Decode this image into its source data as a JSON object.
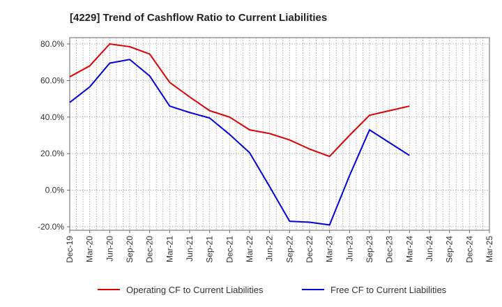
{
  "chart_data": {
    "type": "line",
    "title": "[4229]  Trend of Cashflow Ratio to Current Liabilities",
    "xlabel": "",
    "ylabel": "",
    "ylim": [
      -20,
      80
    ],
    "y_ticks": [
      "80.0%",
      "60.0%",
      "40.0%",
      "20.0%",
      "0.0%",
      "-20.0%"
    ],
    "y_tick_values": [
      80,
      60,
      40,
      20,
      0,
      -20
    ],
    "x_tick_labels": [
      "Dec-19",
      "Mar-20",
      "Jun-20",
      "Sep-20",
      "Dec-20",
      "Mar-21",
      "Jun-21",
      "Sep-21",
      "Dec-21",
      "Mar-22",
      "Jun-22",
      "Sep-22",
      "Dec-22",
      "Mar-23",
      "Jun-23",
      "Sep-23",
      "Dec-23",
      "Mar-24",
      "Jun-24",
      "Sep-24",
      "Dec-24",
      "Mar-25"
    ],
    "grid": true,
    "legend_position": "bottom",
    "series": [
      {
        "name": "Operating CF to Current Liabilities",
        "color": "#e00000",
        "values": [
          62,
          68,
          80,
          78.5,
          74.5,
          59,
          51,
          43.5,
          40,
          33,
          31,
          27.5,
          22.5,
          18.5,
          30,
          41,
          43.5,
          46,
          null,
          null,
          null,
          null
        ]
      },
      {
        "name": "Free CF to Current Liabilities",
        "color": "#0000e0",
        "values": [
          48,
          56.5,
          69.5,
          71.5,
          62.5,
          46,
          42.5,
          39.5,
          30.5,
          20.5,
          2,
          -17,
          -17.5,
          -19,
          8,
          33,
          26,
          19,
          null,
          null,
          null,
          null
        ]
      }
    ]
  }
}
